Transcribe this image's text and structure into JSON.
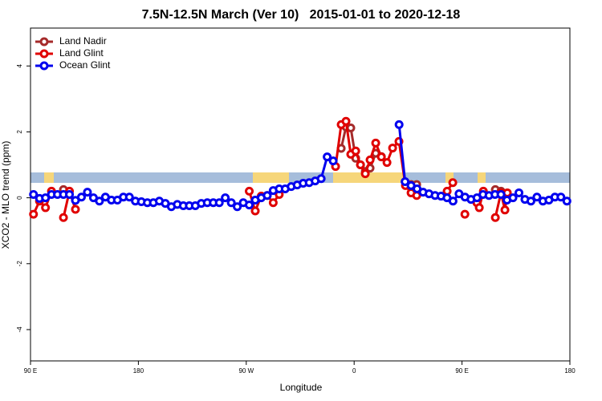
{
  "chart_data": {
    "type": "line",
    "title": "7.5N-12.5N March (Ver 10)   2015-01-01 to 2020-12-18",
    "xlabel": "Longitude",
    "ylabel": "XCO2 - MLO trend (ppm)",
    "xlim": [
      90,
      540
    ],
    "ylim": [
      -4.95,
      5.15
    ],
    "xticks": [
      {
        "value": 90,
        "label": "90 E"
      },
      180,
      {
        "value": 270,
        "label": "90 W"
      },
      {
        "value": 360,
        "label": "0"
      },
      {
        "value": 450,
        "label": "90 E"
      },
      {
        "value": 540,
        "label": "180"
      }
    ],
    "yticks": [
      -4,
      -2,
      0,
      2,
      4
    ],
    "legend": "top-left",
    "series": [
      {
        "name": "Land Nadir",
        "color": "#a52a2a",
        "x": [
          117.5,
          122.5,
          349.2,
          353.2,
          357.2,
          361.3,
          365.3,
          369.3,
          373.3,
          378,
          382.7,
          387.4,
          407.5,
          412.2,
          417,
          477.8,
          482.5,
          485.8
        ],
        "values": [
          0.25,
          null,
          1.5,
          2.15,
          2.12,
          1.2,
          1.0,
          0.8,
          0.9,
          1.35,
          1.25,
          null,
          0.4,
          0.4,
          null,
          0.25,
          0.2,
          0.05
        ]
      },
      {
        "name": "Land Glint",
        "color": "#e00000",
        "x": [
          92.5,
          97.5,
          102.5,
          107.5,
          112.5,
          117.5,
          122.5,
          127.5,
          132.5,
          272.5,
          277.5,
          282.5,
          287.5,
          292.5,
          297.5,
          302.5,
          344.5,
          349.2,
          353.2,
          357.2,
          361.3,
          365.3,
          369.3,
          373.3,
          378,
          382.7,
          387.4,
          392.1,
          397.4,
          402.8,
          407.5,
          412.2,
          417,
          437.6,
          442.3,
          447,
          452.4,
          457.4,
          462.4,
          464.4,
          467.8,
          472.8,
          477.8,
          482.5,
          485.8,
          487.8
        ],
        "values": [
          -0.5,
          -0.1,
          -0.3,
          0.2,
          null,
          -0.6,
          0.2,
          -0.35,
          null,
          0.2,
          -0.4,
          0.05,
          0.07,
          -0.15,
          0.1,
          null,
          0.95,
          2.22,
          2.32,
          1.32,
          1.42,
          1.0,
          0.73,
          1.15,
          1.66,
          1.24,
          1.07,
          1.51,
          1.71,
          0.37,
          0.15,
          0.07,
          null,
          0.2,
          0.46,
          null,
          -0.5,
          null,
          -0.15,
          -0.3,
          0.2,
          null,
          -0.6,
          0.15,
          -0.37,
          0.15
        ]
      },
      {
        "name": "Ocean Glint",
        "color": "#0000ee",
        "x": [
          92.5,
          97.5,
          102.5,
          107.5,
          112.5,
          117.5,
          122.5,
          127.5,
          132.5,
          137.5,
          142.5,
          147.5,
          152.5,
          157.5,
          162.5,
          167.5,
          172.5,
          177.5,
          182.5,
          187.5,
          192.5,
          197.5,
          202.5,
          207.5,
          212.5,
          217.5,
          222.5,
          227.5,
          232.5,
          237.5,
          242.5,
          247.5,
          252.5,
          257.5,
          262.5,
          267.5,
          272.5,
          277.5,
          282.5,
          287.5,
          292.5,
          297.5,
          302.5,
          307.5,
          312.5,
          317.5,
          322.5,
          327.5,
          332.5,
          337.5,
          342.5,
          347.5,
          352.5,
          357.5,
          362.5,
          367.5,
          372.5,
          377.5,
          382.5,
          387.5,
          392.5,
          397.5,
          402.5,
          407.5,
          412.5,
          417.5,
          422.5,
          427.5,
          432.5,
          437.5,
          442.5,
          447.5,
          452.5,
          457.5,
          462.5,
          467.5,
          472.5,
          477.5,
          482.5,
          487.5,
          492.5,
          497.5,
          502.5,
          507.5,
          512.5,
          517.5,
          522.5,
          527.5,
          532.5,
          537.5
        ],
        "values": [
          0.1,
          -0.02,
          0,
          0.1,
          0.1,
          0.1,
          0.1,
          -0.08,
          0.02,
          0.17,
          0,
          -0.1,
          0.02,
          -0.07,
          -0.07,
          0.02,
          0.02,
          -0.1,
          -0.12,
          -0.15,
          -0.15,
          -0.1,
          -0.17,
          -0.27,
          -0.2,
          -0.24,
          -0.24,
          -0.24,
          -0.17,
          -0.15,
          -0.15,
          -0.15,
          0,
          -0.15,
          -0.27,
          -0.15,
          -0.22,
          -0.07,
          0,
          0.07,
          0.22,
          0.27,
          0.27,
          0.34,
          0.39,
          0.44,
          0.46,
          0.51,
          0.58,
          1.24,
          1.12,
          null,
          null,
          null,
          null,
          null,
          null,
          null,
          null,
          null,
          null,
          2.22,
          0.49,
          0.37,
          0.27,
          0.17,
          0.12,
          0.07,
          0.05,
          0,
          -0.1,
          0.12,
          0.02,
          -0.05,
          0,
          0.1,
          0.07,
          0.1,
          0.1,
          -0.07,
          0,
          0.15,
          -0.05,
          -0.1,
          0.02,
          -0.1,
          -0.07,
          0.02,
          0.02,
          -0.1
        ]
      }
    ]
  }
}
